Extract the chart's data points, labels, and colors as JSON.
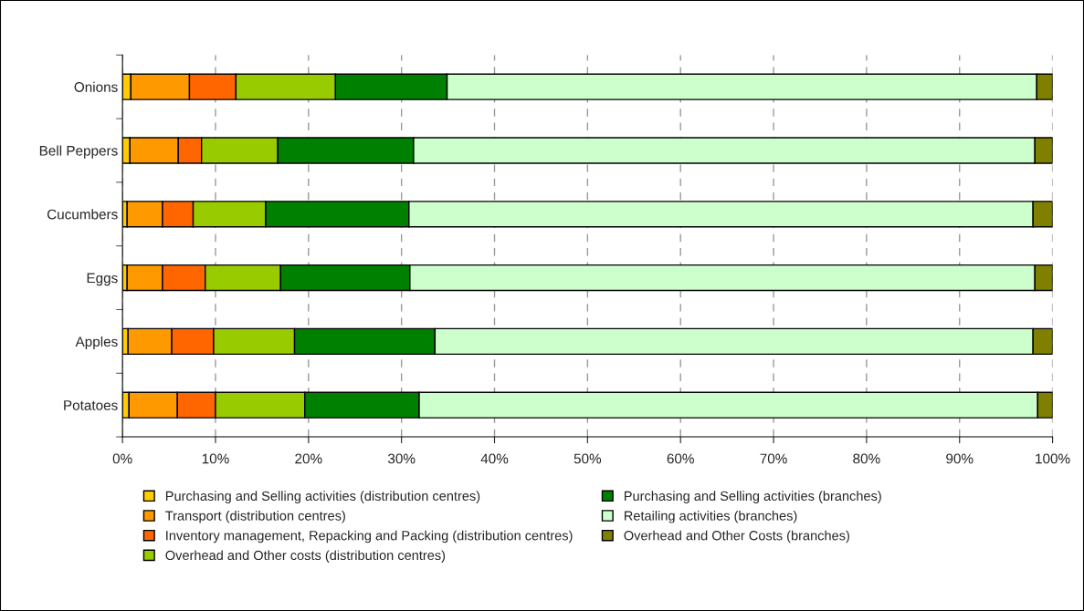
{
  "chart_data": {
    "type": "bar",
    "orientation": "horizontal",
    "stacked": true,
    "categories": [
      "Onions",
      "Bell Peppers",
      "Cucumbers",
      "Eggs",
      "Apples",
      "Potatoes"
    ],
    "series": [
      {
        "name": "Purchasing and Selling activities (distribution centres)",
        "color": "#ffcc00",
        "values": [
          0.9,
          0.8,
          0.5,
          0.5,
          0.6,
          0.7
        ]
      },
      {
        "name": "Transport (distribution centres)",
        "color": "#ff9900",
        "values": [
          6.3,
          5.2,
          3.8,
          3.8,
          4.7,
          5.2
        ]
      },
      {
        "name": "Inventory management, Repacking and Packing (distribution centres)",
        "color": "#ff6600",
        "values": [
          5.0,
          2.5,
          3.3,
          4.6,
          4.5,
          4.1
        ]
      },
      {
        "name": "Overhead and Other costs (distribution centres)",
        "color": "#99cc00",
        "values": [
          10.7,
          8.2,
          7.8,
          8.1,
          8.7,
          9.6
        ]
      },
      {
        "name": "Purchasing and Selling activities (branches)",
        "color": "#008000",
        "values": [
          12.0,
          14.6,
          15.4,
          13.9,
          15.1,
          12.3
        ]
      },
      {
        "name": "Retailing activities (branches)",
        "color": "#ccffcc",
        "values": [
          63.4,
          66.8,
          67.1,
          67.2,
          64.3,
          66.5
        ]
      },
      {
        "name": "Overhead and Other Costs (branches)",
        "color": "#808000",
        "values": [
          1.7,
          1.9,
          2.1,
          1.9,
          2.1,
          1.6
        ]
      }
    ],
    "xlim": [
      0,
      100
    ],
    "xticks": [
      {
        "value": 0,
        "label": "0%"
      },
      {
        "value": 10,
        "label": "10%"
      },
      {
        "value": 20,
        "label": "20%"
      },
      {
        "value": 30,
        "label": "30%"
      },
      {
        "value": 40,
        "label": "40%"
      },
      {
        "value": 50,
        "label": "50%"
      },
      {
        "value": 60,
        "label": "60%"
      },
      {
        "value": 70,
        "label": "70%"
      },
      {
        "value": 80,
        "label": "80%"
      },
      {
        "value": 90,
        "label": "90%"
      },
      {
        "value": 100,
        "label": "100%"
      }
    ],
    "grid": "x",
    "legend": "bottom"
  }
}
